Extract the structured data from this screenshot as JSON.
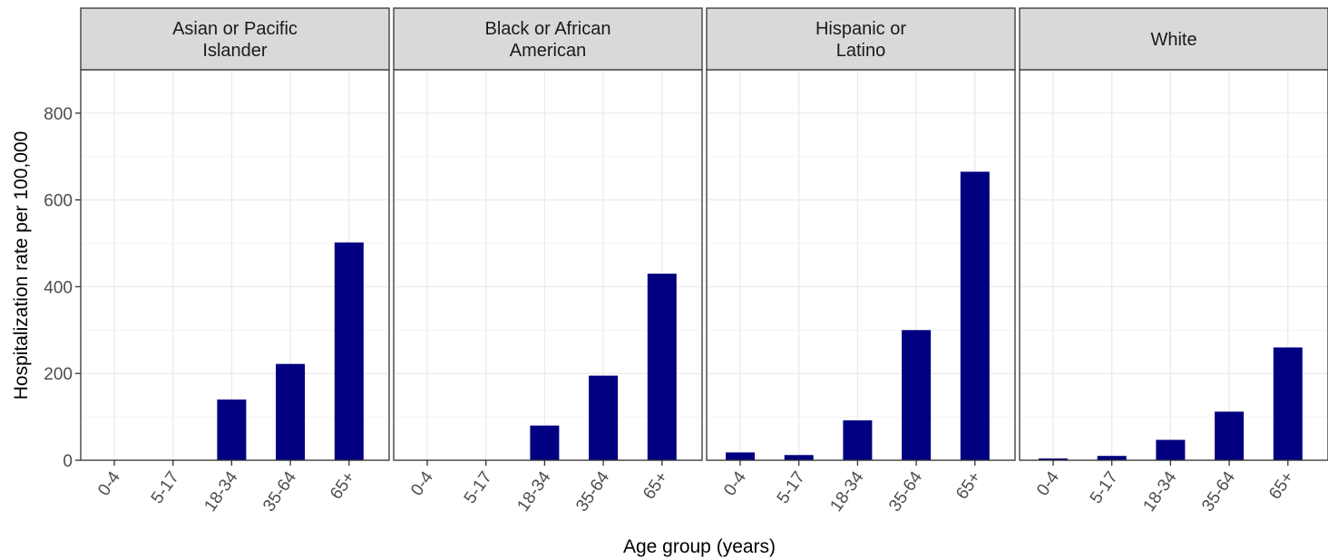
{
  "chart_data": {
    "type": "bar",
    "facet_by": "race/ethnicity",
    "xlabel": "Age group (years)",
    "ylabel": "Hospitalization rate per 100,000",
    "categories": [
      "0-4",
      "5-17",
      "18-34",
      "35-64",
      "65+"
    ],
    "ylim": [
      0,
      900
    ],
    "yticks": [
      0,
      200,
      400,
      600,
      800
    ],
    "grid": true,
    "legend": "none",
    "colors": {
      "bar": "#000080",
      "strip_bg": "#d9d9d9",
      "panel_border": "#333333",
      "grid_major": "#ebebeb",
      "grid_minor": "#f4f4f4"
    },
    "panels": [
      {
        "title_lines": [
          "Asian or Pacific",
          "Islander"
        ],
        "values": [
          0,
          0,
          140,
          222,
          502
        ]
      },
      {
        "title_lines": [
          "Black or African",
          "American"
        ],
        "values": [
          0,
          0,
          80,
          195,
          430
        ]
      },
      {
        "title_lines": [
          "Hispanic or",
          "Latino"
        ],
        "values": [
          18,
          12,
          92,
          300,
          665
        ]
      },
      {
        "title_lines": [
          "White"
        ],
        "values": [
          4,
          10,
          47,
          112,
          260
        ]
      }
    ]
  }
}
